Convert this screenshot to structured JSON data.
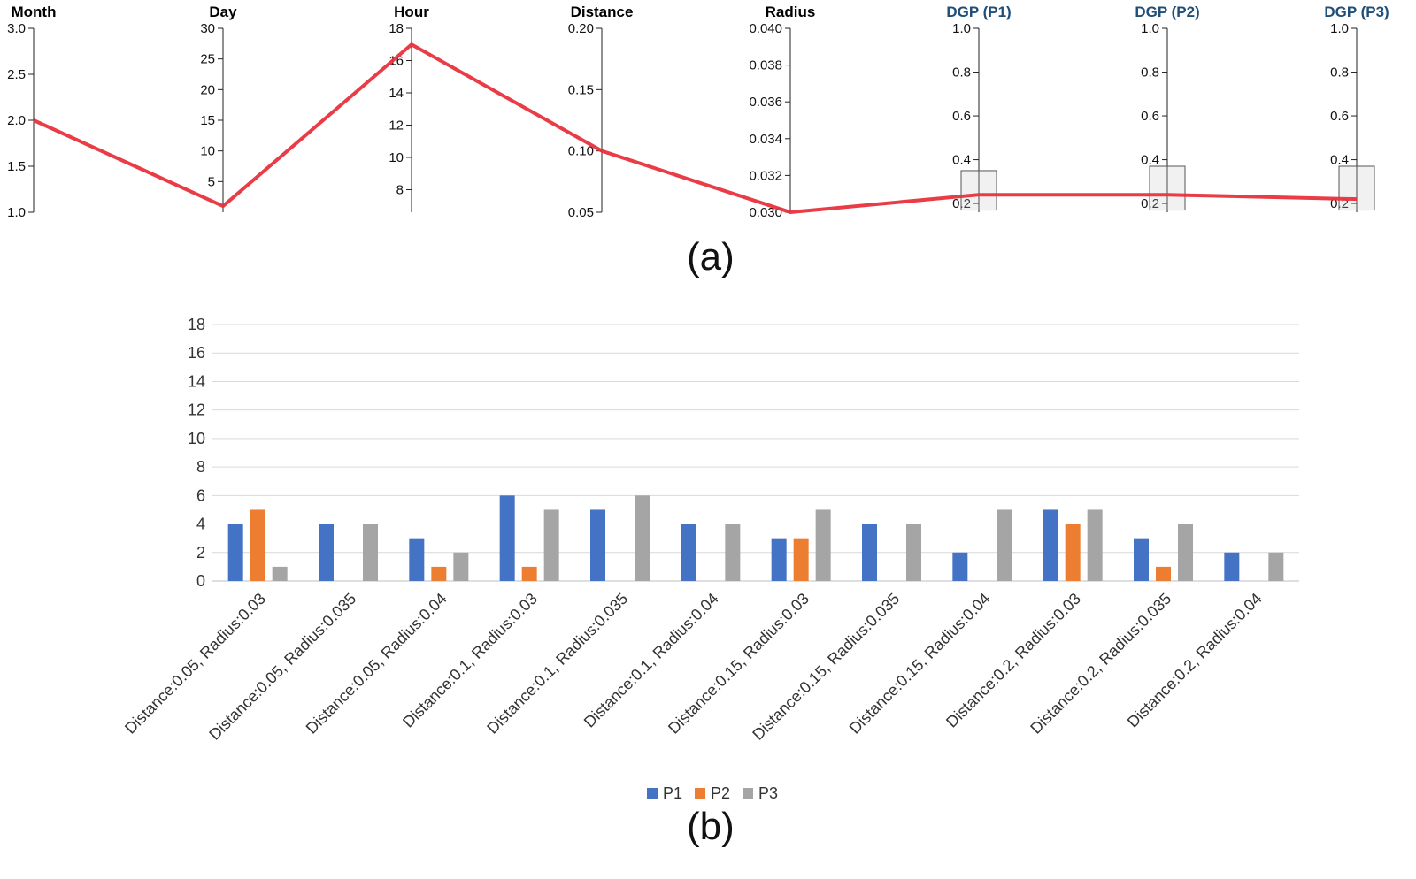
{
  "captions": {
    "a": "(a)",
    "b": "(b)"
  },
  "chart_data": [
    {
      "type": "parallel_coordinates",
      "axes": [
        {
          "name": "Month",
          "range": [
            1.0,
            3.0
          ],
          "ticks": [
            1.0,
            1.5,
            2.0,
            2.5,
            3.0
          ],
          "tick_labels": [
            "1.0",
            "1.5",
            "2.0",
            "2.5",
            "3.0"
          ]
        },
        {
          "name": "Day",
          "range": [
            0,
            30
          ],
          "ticks": [
            5,
            10,
            15,
            20,
            25,
            30
          ],
          "tick_labels": [
            "5",
            "10",
            "15",
            "20",
            "25",
            "30"
          ]
        },
        {
          "name": "Hour",
          "range": [
            6.6,
            18
          ],
          "ticks": [
            8,
            10,
            12,
            14,
            16,
            18
          ],
          "tick_labels": [
            "8",
            "10",
            "12",
            "14",
            "16",
            "18"
          ]
        },
        {
          "name": "Distance",
          "range": [
            0.05,
            0.2
          ],
          "ticks": [
            0.05,
            0.1,
            0.15,
            0.2
          ],
          "tick_labels": [
            "0.05",
            "0.10",
            "0.15",
            "0.20"
          ]
        },
        {
          "name": "Radius",
          "range": [
            0.03,
            0.04
          ],
          "ticks": [
            0.03,
            0.032,
            0.034,
            0.036,
            0.038,
            0.04
          ],
          "tick_labels": [
            "0.030",
            "0.032",
            "0.034",
            "0.036",
            "0.038",
            "0.040"
          ]
        },
        {
          "name": "DGP (P1)",
          "range": [
            0.16,
            1.0
          ],
          "ticks": [
            0.2,
            0.4,
            0.6,
            0.8,
            1.0
          ],
          "tick_labels": [
            "0.2",
            "0.4",
            "0.6",
            "0.8",
            "1.0"
          ]
        },
        {
          "name": "DGP (P2)",
          "range": [
            0.16,
            1.0
          ],
          "ticks": [
            0.2,
            0.4,
            0.6,
            0.8,
            1.0
          ],
          "tick_labels": [
            "0.2",
            "0.4",
            "0.6",
            "0.8",
            "1.0"
          ]
        },
        {
          "name": "DGP (P3)",
          "range": [
            0.16,
            1.0
          ],
          "ticks": [
            0.2,
            0.4,
            0.6,
            0.8,
            1.0
          ],
          "tick_labels": [
            "0.2",
            "0.4",
            "0.6",
            "0.8",
            "1.0"
          ]
        }
      ],
      "line_values": [
        2.0,
        1.0,
        17.0,
        0.1,
        0.03,
        0.24,
        0.24,
        0.22
      ],
      "brush_ranges": [
        null,
        null,
        null,
        null,
        null,
        [
          0.17,
          0.35
        ],
        [
          0.17,
          0.37
        ],
        [
          0.17,
          0.37
        ]
      ],
      "line_color": "#e8323c",
      "axis_label_colors": [
        "#000000",
        "#000000",
        "#000000",
        "#000000",
        "#000000",
        "#1f4e79",
        "#1f4e79",
        "#1f4e79"
      ]
    },
    {
      "type": "bar",
      "categories": [
        "Distance:0.05, Radius:0.03",
        "Distance:0.05, Radius:0.035",
        "Distance:0.05, Radius:0.04",
        "Distance:0.1, Radius:0.03",
        "Distance:0.1, Radius:0.035",
        "Distance:0.1, Radius:0.04",
        "Distance:0.15, Radius:0.03",
        "Distance:0.15, Radius:0.035",
        "Distance:0.15, Radius:0.04",
        "Distance:0.2, Radius:0.03",
        "Distance:0.2, Radius:0.035",
        "Distance:0.2, Radius:0.04"
      ],
      "series": [
        {
          "name": "P1",
          "color": "#4472c4",
          "values": [
            4,
            4,
            3,
            6,
            5,
            4,
            3,
            4,
            2,
            5,
            3,
            2
          ]
        },
        {
          "name": "P2",
          "color": "#ed7d31",
          "values": [
            5,
            0,
            1,
            1,
            0,
            0,
            3,
            0,
            0,
            4,
            1,
            0
          ]
        },
        {
          "name": "P3",
          "color": "#a5a5a5",
          "values": [
            1,
            4,
            2,
            5,
            6,
            4,
            5,
            4,
            5,
            5,
            4,
            2
          ]
        }
      ],
      "ylim": [
        0,
        18
      ],
      "yticks": [
        0,
        2,
        4,
        6,
        8,
        10,
        12,
        14,
        16,
        18
      ],
      "grid": true,
      "legend": "bottom-center"
    }
  ]
}
